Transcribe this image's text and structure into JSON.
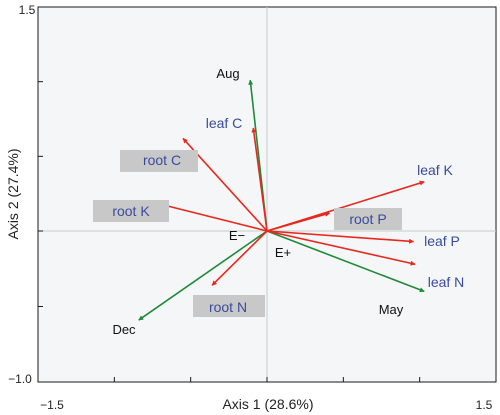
{
  "chart_data": {
    "type": "scatter",
    "subtype": "biplot",
    "xlabel": "Axis 1 (28.6%)",
    "ylabel": "Axis 2 (27.4%)",
    "xlim": [
      -1.5,
      1.5
    ],
    "ylim": [
      -1.0,
      1.5
    ],
    "x_tick_labels": [
      "−1.5",
      "1.5"
    ],
    "y_tick_labels": [
      "1.5",
      "−1.0"
    ],
    "grid": false,
    "colors": {
      "plant_vectors": "#e8281e",
      "environment_vectors": "#1f8a3a",
      "plant_label_text": "#3b4a9e",
      "label_box": "#c8c8c8",
      "background": "#f4f6f7"
    },
    "series": [
      {
        "group": "plant",
        "color": "#e8281e",
        "vectors": [
          {
            "label": "leaf C",
            "x": -0.09,
            "y": 0.69,
            "boxed": false
          },
          {
            "label": "root C",
            "x": -0.55,
            "y": 0.62,
            "boxed": true
          },
          {
            "label": "root K",
            "x": -0.7,
            "y": 0.18,
            "boxed": true
          },
          {
            "label": "leaf K",
            "x": 1.03,
            "y": 0.33,
            "boxed": false
          },
          {
            "label": "root P",
            "x": 0.41,
            "y": 0.12,
            "boxed": true
          },
          {
            "label": "leaf P",
            "x": 0.96,
            "y": -0.07,
            "boxed": false
          },
          {
            "label": "leaf N",
            "x": 0.97,
            "y": -0.22,
            "boxed": false
          },
          {
            "label": "root N",
            "x": -0.36,
            "y": -0.36,
            "boxed": true
          }
        ]
      },
      {
        "group": "environment",
        "color": "#1f8a3a",
        "vectors": [
          {
            "label": "Aug",
            "x": -0.11,
            "y": 1.01
          },
          {
            "label": "May",
            "x": 1.03,
            "y": -0.4
          },
          {
            "label": "Dec",
            "x": -0.84,
            "y": -0.59
          },
          {
            "label": "E−",
            "x": 0.0,
            "y": 0.0
          },
          {
            "label": "E+",
            "x": 0.0,
            "y": 0.0
          }
        ]
      }
    ]
  }
}
